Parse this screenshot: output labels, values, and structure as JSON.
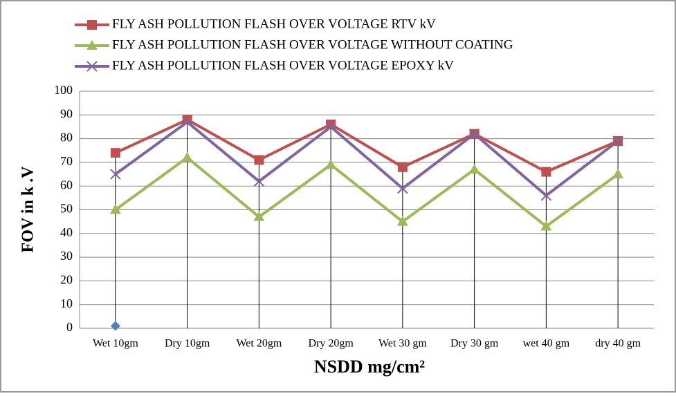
{
  "chart_data": {
    "type": "line",
    "x_label": "NSDD mg/cm²",
    "y_label": "FOV in k .V",
    "categories": [
      "Wet 10gm",
      "Dry 10gm",
      "Wet 20gm",
      "Dry 20gm",
      "Wet 30 gm",
      "Dry 30 gm",
      "wet 40 gm",
      "dry 40 gm"
    ],
    "series": [
      {
        "name": "FLY ASH POLLUTION FLASH OVER VOLTAGE RTV  kV",
        "color": "#c0504d",
        "marker": "square",
        "values": [
          74,
          88,
          71,
          86,
          68,
          82,
          66,
          79
        ]
      },
      {
        "name": "FLY ASH POLLUTION FLASH OVER VOLTAGE WITHOUT COATING",
        "color": "#9bbb59",
        "marker": "triangle",
        "values": [
          50,
          72,
          47,
          69,
          45,
          67,
          43,
          65
        ]
      },
      {
        "name": "FLY ASH POLLUTION FLASH OVER VOLTAGE EPOXY  kV",
        "color": "#8064a2",
        "marker": "x",
        "values": [
          65,
          87,
          62,
          85,
          59,
          82,
          56,
          79
        ]
      },
      {
        "color": "#4f81bd",
        "marker": "diamond",
        "values": [
          1,
          null,
          null,
          null,
          null,
          null,
          null,
          null
        ]
      }
    ],
    "ylim": [
      0,
      100
    ],
    "yticks": [
      0,
      10,
      20,
      30,
      40,
      50,
      60,
      70,
      80,
      90,
      100
    ],
    "grid": true,
    "drop_lines": true,
    "legend": "top-left"
  }
}
